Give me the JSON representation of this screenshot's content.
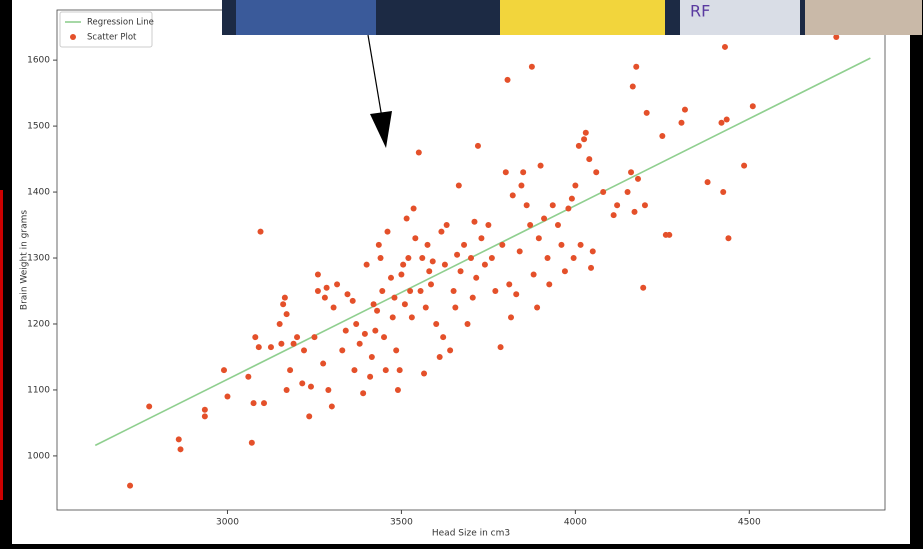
{
  "chart_data": {
    "type": "scatter",
    "xlabel": "Head Size in cm3",
    "ylabel": "Brain Weight in grams",
    "xlim": [
      2510,
      4890
    ],
    "ylim": [
      918,
      1676
    ],
    "xticks": [
      3000,
      3500,
      4000,
      4500
    ],
    "yticks": [
      1000,
      1100,
      1200,
      1300,
      1400,
      1500,
      1600
    ],
    "legend": "upper left",
    "series": [
      {
        "name": "Regression Line",
        "type": "line",
        "color": "#8fcf8f",
        "x": [
          2620,
          4848
        ],
        "values": [
          1016,
          1603
        ]
      },
      {
        "name": "Scatter Plot",
        "type": "scatter",
        "color": "#e4502a",
        "x": [
          2720,
          2775,
          2860,
          2865,
          2935,
          2935,
          2990,
          3000,
          3060,
          3070,
          3075,
          3080,
          3090,
          3095,
          3105,
          3125,
          3150,
          3155,
          3160,
          3165,
          3170,
          3170,
          3180,
          3190,
          3200,
          3215,
          3220,
          3235,
          3240,
          3250,
          3260,
          3260,
          3275,
          3280,
          3285,
          3290,
          3300,
          3305,
          3315,
          3330,
          3340,
          3345,
          3360,
          3365,
          3370,
          3380,
          3390,
          3395,
          3400,
          3410,
          3415,
          3420,
          3425,
          3430,
          3435,
          3440,
          3445,
          3450,
          3455,
          3460,
          3470,
          3475,
          3480,
          3485,
          3490,
          3495,
          3500,
          3505,
          3510,
          3515,
          3520,
          3525,
          3530,
          3535,
          3540,
          3550,
          3555,
          3560,
          3565,
          3570,
          3575,
          3580,
          3585,
          3590,
          3600,
          3610,
          3615,
          3620,
          3625,
          3630,
          3640,
          3650,
          3655,
          3660,
          3665,
          3670,
          3680,
          3690,
          3700,
          3705,
          3710,
          3715,
          3720,
          3730,
          3740,
          3750,
          3760,
          3770,
          3785,
          3790,
          3800,
          3805,
          3810,
          3815,
          3820,
          3830,
          3840,
          3845,
          3850,
          3860,
          3870,
          3875,
          3880,
          3890,
          3895,
          3900,
          3910,
          3920,
          3925,
          3935,
          3950,
          3960,
          3970,
          3980,
          3990,
          3995,
          4000,
          4010,
          4015,
          4025,
          4030,
          4040,
          4045,
          4050,
          4060,
          4080,
          4110,
          4120,
          4150,
          4160,
          4165,
          4170,
          4175,
          4180,
          4195,
          4200,
          4205,
          4250,
          4260,
          4270,
          4305,
          4315,
          4380,
          4420,
          4425,
          4430,
          4435,
          4440,
          4485,
          4510,
          4750
        ],
        "values": [
          955,
          1075,
          1025,
          1010,
          1060,
          1070,
          1130,
          1090,
          1120,
          1020,
          1080,
          1180,
          1165,
          1340,
          1080,
          1165,
          1200,
          1170,
          1230,
          1240,
          1215,
          1100,
          1130,
          1170,
          1180,
          1110,
          1160,
          1060,
          1105,
          1180,
          1250,
          1275,
          1140,
          1240,
          1255,
          1100,
          1075,
          1225,
          1260,
          1160,
          1190,
          1245,
          1235,
          1130,
          1200,
          1170,
          1095,
          1185,
          1290,
          1120,
          1150,
          1230,
          1190,
          1220,
          1320,
          1300,
          1250,
          1180,
          1130,
          1340,
          1270,
          1210,
          1240,
          1160,
          1100,
          1130,
          1275,
          1290,
          1230,
          1360,
          1300,
          1250,
          1210,
          1375,
          1330,
          1460,
          1250,
          1300,
          1125,
          1225,
          1320,
          1280,
          1260,
          1295,
          1200,
          1150,
          1340,
          1180,
          1290,
          1350,
          1160,
          1250,
          1225,
          1305,
          1410,
          1280,
          1320,
          1200,
          1300,
          1240,
          1355,
          1270,
          1470,
          1330,
          1290,
          1350,
          1300,
          1250,
          1165,
          1320,
          1430,
          1570,
          1260,
          1210,
          1395,
          1245,
          1310,
          1410,
          1430,
          1380,
          1350,
          1590,
          1275,
          1225,
          1330,
          1440,
          1360,
          1300,
          1260,
          1380,
          1350,
          1320,
          1280,
          1375,
          1390,
          1300,
          1410,
          1470,
          1320,
          1480,
          1490,
          1450,
          1285,
          1310,
          1430,
          1400,
          1365,
          1380,
          1400,
          1430,
          1560,
          1370,
          1590,
          1420,
          1255,
          1380,
          1520,
          1485,
          1335,
          1335,
          1505,
          1525,
          1415,
          1505,
          1400,
          1620,
          1510,
          1330,
          1440,
          1530,
          1635
        ]
      }
    ]
  },
  "video_overlay": {
    "text": "RF"
  }
}
